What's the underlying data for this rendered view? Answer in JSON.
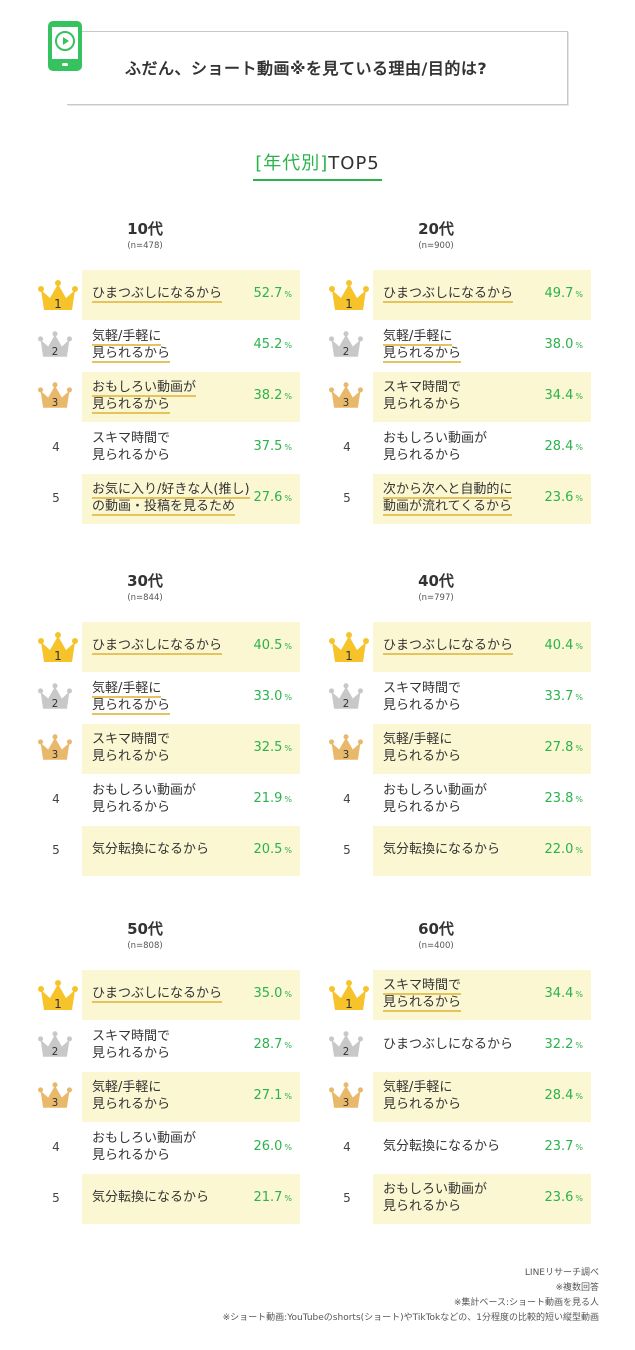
{
  "header": {
    "title": "ふだん、ショート動画※を見ている理由/目的は?",
    "icon": "play-phone-icon"
  },
  "section": {
    "bracket_title": "[年代別]",
    "suffix": "TOP5"
  },
  "colors": {
    "accent_green": "#2bb34b",
    "highlight_bg": "#fbf7d2",
    "underline": "#e5c45d",
    "gold": "#f6c42a",
    "silver": "#c8c8c8",
    "bronze": "#e9b96b"
  },
  "percent_unit": "%",
  "chart_data": [
    {
      "type": "table",
      "title": "10代",
      "n": "(n=478)",
      "rows": [
        {
          "rank": "1",
          "reason": "ひまつぶしになるから",
          "value": 52.7
        },
        {
          "rank": "2",
          "reason": "気軽/手軽に\n見られるから",
          "value": 45.2
        },
        {
          "rank": "3",
          "reason": "おもしろい動画が\n見られるから",
          "value": 38.2
        },
        {
          "rank": "4",
          "reason": "スキマ時間で\n見られるから",
          "value": 37.5
        },
        {
          "rank": "5",
          "reason": "お気に入り/好きな人(推し)\nの動画・投稿を見るため",
          "value": 27.6
        }
      ]
    },
    {
      "type": "table",
      "title": "20代",
      "n": "(n=900)",
      "rows": [
        {
          "rank": "1",
          "reason": "ひまつぶしになるから",
          "value": 49.7
        },
        {
          "rank": "2",
          "reason": "気軽/手軽に\n見られるから",
          "value": 38.0
        },
        {
          "rank": "3",
          "reason": "スキマ時間で\n見られるから",
          "value": 34.4
        },
        {
          "rank": "4",
          "reason": "おもしろい動画が\n見られるから",
          "value": 28.4
        },
        {
          "rank": "5",
          "reason": "次から次へと自動的に\n動画が流れてくるから",
          "value": 23.6
        }
      ]
    },
    {
      "type": "table",
      "title": "30代",
      "n": "(n=844)",
      "rows": [
        {
          "rank": "1",
          "reason": "ひまつぶしになるから",
          "value": 40.5
        },
        {
          "rank": "2",
          "reason": "気軽/手軽に\n見られるから",
          "value": 33.0
        },
        {
          "rank": "3",
          "reason": "スキマ時間で\n見られるから",
          "value": 32.5
        },
        {
          "rank": "4",
          "reason": "おもしろい動画が\n見られるから",
          "value": 21.9
        },
        {
          "rank": "5",
          "reason": "気分転換になるから",
          "value": 20.5
        }
      ]
    },
    {
      "type": "table",
      "title": "40代",
      "n": "(n=797)",
      "rows": [
        {
          "rank": "1",
          "reason": "ひまつぶしになるから",
          "value": 40.4
        },
        {
          "rank": "2",
          "reason": "スキマ時間で\n見られるから",
          "value": 33.7
        },
        {
          "rank": "3",
          "reason": "気軽/手軽に\n見られるから",
          "value": 27.8
        },
        {
          "rank": "4",
          "reason": "おもしろい動画が\n見られるから",
          "value": 23.8
        },
        {
          "rank": "5",
          "reason": "気分転換になるから",
          "value": 22.0
        }
      ]
    },
    {
      "type": "table",
      "title": "50代",
      "n": "(n=808)",
      "rows": [
        {
          "rank": "1",
          "reason": "ひまつぶしになるから",
          "value": 35.0
        },
        {
          "rank": "2",
          "reason": "スキマ時間で\n見られるから",
          "value": 28.7
        },
        {
          "rank": "3",
          "reason": "気軽/手軽に\n見られるから",
          "value": 27.1
        },
        {
          "rank": "4",
          "reason": "おもしろい動画が\n見られるから",
          "value": 26.0
        },
        {
          "rank": "5",
          "reason": "気分転換になるから",
          "value": 21.7
        }
      ]
    },
    {
      "type": "table",
      "title": "60代",
      "n": "(n=400)",
      "rows": [
        {
          "rank": "1",
          "reason": "スキマ時間で\n見られるから",
          "value": 34.4
        },
        {
          "rank": "2",
          "reason": "ひまつぶしになるから",
          "value": 32.2
        },
        {
          "rank": "3",
          "reason": "気軽/手軽に\n見られるから",
          "value": 28.4
        },
        {
          "rank": "4",
          "reason": "気分転換になるから",
          "value": 23.7
        },
        {
          "rank": "5",
          "reason": "おもしろい動画が\n見られるから",
          "value": 23.6
        }
      ]
    }
  ],
  "notes": [
    "LINEリサーチ調べ",
    "※複数回答",
    "※集計ベース:ショート動画を見る人",
    "※ショート動画:YouTubeのshorts(ショート)やTikTokなどの、1分程度の比較的短い縦型動画"
  ]
}
